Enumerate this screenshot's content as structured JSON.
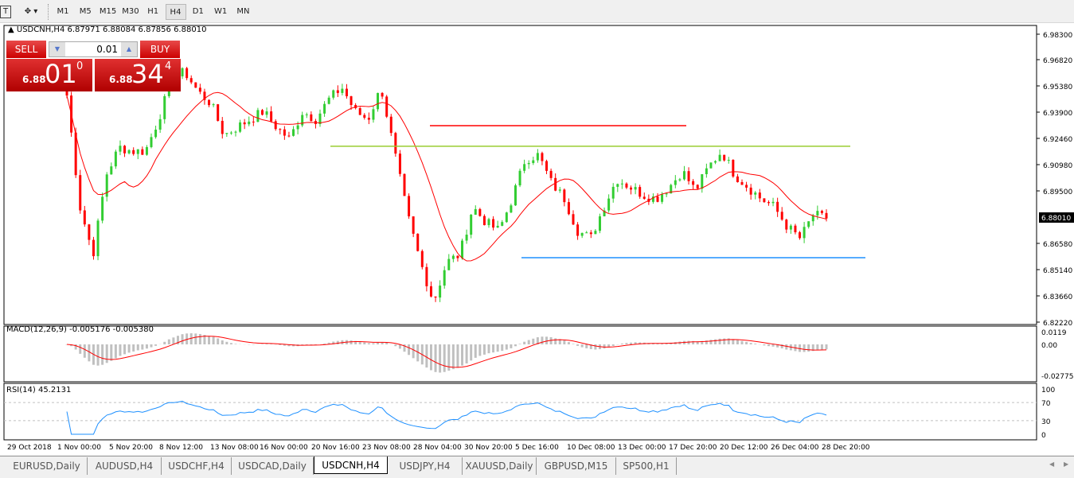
{
  "toolbar": {
    "text_tool": "T",
    "timeframes": [
      "M1",
      "M5",
      "M15",
      "M30",
      "H1",
      "H4",
      "D1",
      "W1",
      "MN"
    ],
    "active_timeframe": "H4"
  },
  "chart": {
    "header": "USDCNH,H4  6.87971 6.88084 6.87856 6.88010",
    "symbol": "USDCNH",
    "timeframe": "H4",
    "ohlc": {
      "open": "6.87971",
      "high": "6.88084",
      "low": "6.87856",
      "close": "6.88010"
    },
    "current_price": "6.88010",
    "price_ticks": [
      "6.98300",
      "6.96820",
      "6.95380",
      "6.93900",
      "6.92460",
      "6.90980",
      "6.89500",
      "6.86580",
      "6.85140",
      "6.83660",
      "6.82220"
    ],
    "price_range": [
      6.8222,
      6.983
    ],
    "time_ticks": [
      "29 Oct 2018",
      "1 Nov 00:00",
      "5 Nov 20:00",
      "8 Nov 12:00",
      "13 Nov 08:00",
      "16 Nov 00:00",
      "20 Nov 16:00",
      "23 Nov 08:00",
      "28 Nov 04:00",
      "30 Nov 20:00",
      "5 Dec 16:00",
      "10 Dec 08:00",
      "13 Dec 00:00",
      "17 Dec 20:00",
      "20 Dec 12:00",
      "26 Dec 04:00",
      "28 Dec 20:00"
    ],
    "approx_close_path": [
      6.9488,
      6.8866,
      6.86,
      6.9044,
      6.9199,
      6.9177,
      6.9177,
      6.9355,
      6.9577,
      6.9621,
      6.951,
      6.9444,
      6.9266,
      6.9311,
      6.9355,
      6.9399,
      6.9311,
      6.9244,
      6.9399,
      6.9355,
      6.9466,
      6.9533,
      6.9399,
      6.9355,
      6.9533,
      6.9177,
      6.8822,
      6.8556,
      6.8334,
      6.8556,
      6.86,
      6.8866,
      6.8778,
      6.8733,
      6.8911,
      6.9133,
      6.9155,
      6.9,
      6.8911,
      6.8733,
      6.8689,
      6.8866,
      6.9022,
      6.8978,
      6.8933,
      6.8911,
      6.8978,
      6.9066,
      6.8955,
      6.9089,
      6.9177,
      6.9044,
      6.8978,
      6.8911,
      6.8866,
      6.8756,
      6.8689,
      6.8822,
      6.8801
    ],
    "horizontal_lines": [
      {
        "price": 6.9319,
        "color": "#ff0000"
      },
      {
        "price": 6.9204,
        "color": "#9acd32"
      },
      {
        "price": 6.8582,
        "color": "#1e90ff"
      }
    ],
    "colors": {
      "bull": "#32cd32",
      "bear": "#ff0000",
      "ma": "#ff0000",
      "background": "#ffffff"
    }
  },
  "trade_panel": {
    "sell_label": "SELL",
    "buy_label": "BUY",
    "lot": "0.01",
    "sell_prefix": "6.88",
    "sell_big": "01",
    "sell_sup": "0",
    "buy_prefix": "6.88",
    "buy_big": "34",
    "buy_sup": "4"
  },
  "macd": {
    "label": "MACD(12,26,9) -0.005176 -0.005380",
    "ticks": [
      "0.0119",
      "0.00",
      "-0.027754"
    ],
    "colors": {
      "histogram": "#c0c0c0",
      "signal": "#ff0000"
    }
  },
  "rsi": {
    "label": "RSI(14) 45.2131",
    "ticks": [
      "100",
      "70",
      "30",
      "0"
    ],
    "color": "#1e90ff"
  },
  "tabs": [
    "EURUSD,Daily",
    "AUDUSD,H4",
    "USDCHF,H4",
    "USDCAD,Daily",
    "USDCNH,H4",
    "USDJPY,H4",
    "XAUUSD,Daily",
    "GBPUSD,M15",
    "SP500,H1"
  ],
  "active_tab": "USDCNH,H4",
  "tab_scroll": {
    "left": "◀",
    "right": "▶"
  }
}
